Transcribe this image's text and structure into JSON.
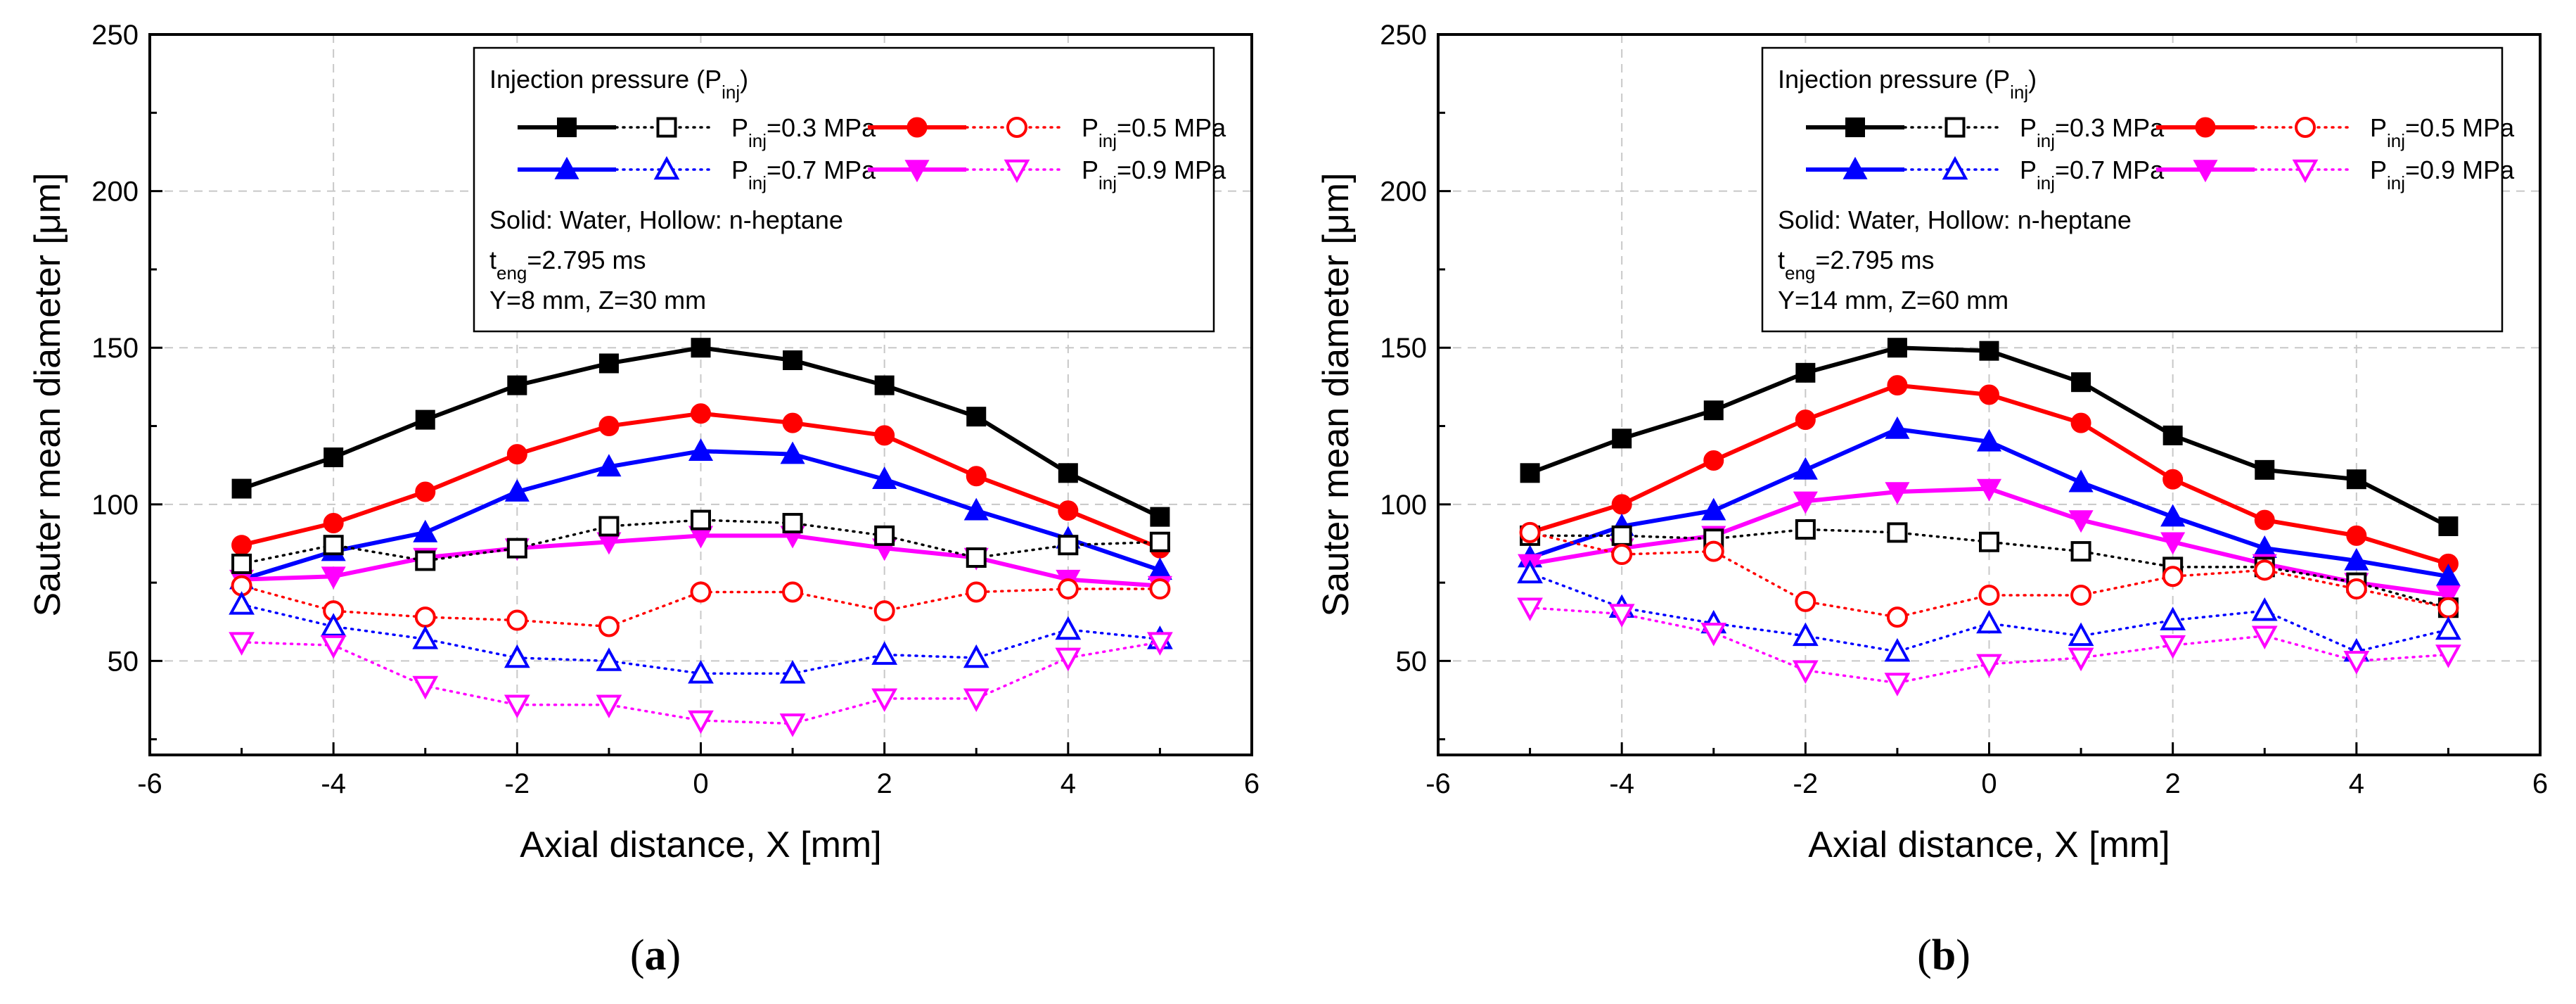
{
  "chart_data": [
    {
      "type": "line",
      "panel": "a",
      "panel_label_open": "(",
      "panel_label_letter": "a",
      "panel_label_close": ")",
      "xlabel": "Axial distance, X [mm]",
      "ylabel": "Sauter mean diameter [μm]",
      "xlim": [
        -6,
        6
      ],
      "ylim": [
        20,
        250
      ],
      "x_ticks": [
        "-6",
        "-4",
        "-2",
        "0",
        "2",
        "4",
        "6"
      ],
      "y_ticks": [
        "50",
        "100",
        "150",
        "200",
        "250"
      ],
      "grid": true,
      "legend": {
        "title": "Injection pressure (P",
        "title_sub": "inj",
        "title_close": ")",
        "entries": [
          {
            "pre": "P",
            "sub": "inj",
            "post": "=0.3 MPa"
          },
          {
            "pre": "P",
            "sub": "inj",
            "post": "=0.5 MPa"
          },
          {
            "pre": "P",
            "sub": "inj",
            "post": "=0.7 MPa"
          },
          {
            "pre": "P",
            "sub": "inj",
            "post": "=0.9 MPa"
          }
        ],
        "note1": "Solid: Water, Hollow: n-heptane",
        "note2_pre": "t",
        "note2_sub": "eng",
        "note2_post": "=2.795 ms",
        "note3": "Y=8 mm, Z=30 mm",
        "placement": "top-right"
      },
      "x": [
        -5,
        -4,
        -3,
        -2,
        -1,
        0,
        1,
        2,
        3,
        4,
        5
      ],
      "series": [
        {
          "name": "Water P_inj=0.3 MPa",
          "fluid": "water",
          "color": "#000000",
          "marker": "square",
          "values": [
            105,
            115,
            127,
            138,
            145,
            150,
            146,
            138,
            128,
            110,
            96
          ]
        },
        {
          "name": "Water P_inj=0.5 MPa",
          "fluid": "water",
          "color": "#ff0000",
          "marker": "circle",
          "values": [
            87,
            94,
            104,
            116,
            125,
            129,
            126,
            122,
            109,
            98,
            86
          ]
        },
        {
          "name": "Water P_inj=0.7 MPa",
          "fluid": "water",
          "color": "#0000ff",
          "marker": "triangle-up",
          "values": [
            76,
            85,
            91,
            104,
            112,
            117,
            116,
            108,
            98,
            89,
            79
          ]
        },
        {
          "name": "Water P_inj=0.9 MPa",
          "fluid": "water",
          "color": "#ff00ff",
          "marker": "triangle-down",
          "values": [
            76,
            77,
            83,
            86,
            88,
            90,
            90,
            86,
            83,
            76,
            74
          ]
        },
        {
          "name": "n-heptane P_inj=0.3 MPa",
          "fluid": "n-heptane",
          "color": "#000000",
          "marker": "square",
          "values": [
            81,
            87,
            82,
            86,
            93,
            95,
            94,
            90,
            83,
            87,
            88
          ]
        },
        {
          "name": "n-heptane P_inj=0.5 MPa",
          "fluid": "n-heptane",
          "color": "#ff0000",
          "marker": "circle",
          "values": [
            74,
            66,
            64,
            63,
            61,
            72,
            72,
            66,
            72,
            73,
            73
          ]
        },
        {
          "name": "n-heptane P_inj=0.7 MPa",
          "fluid": "n-heptane",
          "color": "#0000ff",
          "marker": "triangle-up",
          "values": [
            68,
            61,
            57,
            51,
            50,
            46,
            46,
            52,
            51,
            60,
            57
          ]
        },
        {
          "name": "n-heptane P_inj=0.9 MPa",
          "fluid": "n-heptane",
          "color": "#ff00ff",
          "marker": "triangle-down",
          "values": [
            56,
            55,
            42,
            36,
            36,
            31,
            30,
            38,
            38,
            51,
            56
          ]
        }
      ]
    },
    {
      "type": "line",
      "panel": "b",
      "panel_label_open": "(",
      "panel_label_letter": "b",
      "panel_label_close": ")",
      "xlabel": "Axial distance, X [mm]",
      "ylabel": "Sauter mean diameter [μm]",
      "xlim": [
        -6,
        6
      ],
      "ylim": [
        20,
        250
      ],
      "x_ticks": [
        "-6",
        "-4",
        "-2",
        "0",
        "2",
        "4",
        "6"
      ],
      "y_ticks": [
        "50",
        "100",
        "150",
        "200",
        "250"
      ],
      "grid": true,
      "legend": {
        "title": "Injection pressure (P",
        "title_sub": "inj",
        "title_close": ")",
        "entries": [
          {
            "pre": "P",
            "sub": "inj",
            "post": "=0.3 MPa"
          },
          {
            "pre": "P",
            "sub": "inj",
            "post": "=0.5 MPa"
          },
          {
            "pre": "P",
            "sub": "inj",
            "post": "=0.7 MPa"
          },
          {
            "pre": "P",
            "sub": "inj",
            "post": "=0.9 MPa"
          }
        ],
        "note1": "Solid: Water, Hollow: n-heptane",
        "note2_pre": "t",
        "note2_sub": "eng",
        "note2_post": "=2.795 ms",
        "note3": "Y=14 mm, Z=60 mm",
        "placement": "top-right"
      },
      "x": [
        -5,
        -4,
        -3,
        -2,
        -1,
        0,
        1,
        2,
        3,
        4,
        5
      ],
      "series": [
        {
          "name": "Water P_inj=0.3 MPa",
          "fluid": "water",
          "color": "#000000",
          "marker": "square",
          "values": [
            110,
            121,
            130,
            142,
            150,
            149,
            139,
            122,
            111,
            108,
            93
          ]
        },
        {
          "name": "Water P_inj=0.5 MPa",
          "fluid": "water",
          "color": "#ff0000",
          "marker": "circle",
          "values": [
            91,
            100,
            114,
            127,
            138,
            135,
            126,
            108,
            95,
            90,
            81
          ]
        },
        {
          "name": "Water P_inj=0.7 MPa",
          "fluid": "water",
          "color": "#0000ff",
          "marker": "triangle-up",
          "values": [
            83,
            93,
            98,
            111,
            124,
            120,
            107,
            96,
            86,
            82,
            77
          ]
        },
        {
          "name": "Water P_inj=0.9 MPa",
          "fluid": "water",
          "color": "#ff00ff",
          "marker": "triangle-down",
          "values": [
            81,
            86,
            90,
            101,
            104,
            105,
            95,
            88,
            81,
            75,
            71
          ]
        },
        {
          "name": "n-heptane P_inj=0.3 MPa",
          "fluid": "n-heptane",
          "color": "#000000",
          "marker": "square",
          "values": [
            90,
            90,
            89,
            92,
            91,
            88,
            85,
            80,
            80,
            75,
            67
          ]
        },
        {
          "name": "n-heptane P_inj=0.5 MPa",
          "fluid": "n-heptane",
          "color": "#ff0000",
          "marker": "circle",
          "values": [
            91,
            84,
            85,
            69,
            64,
            71,
            71,
            77,
            79,
            73,
            67
          ]
        },
        {
          "name": "n-heptane P_inj=0.7 MPa",
          "fluid": "n-heptane",
          "color": "#0000ff",
          "marker": "triangle-up",
          "values": [
            78,
            67,
            62,
            58,
            53,
            62,
            58,
            63,
            66,
            53,
            60
          ]
        },
        {
          "name": "n-heptane P_inj=0.9 MPa",
          "fluid": "n-heptane",
          "color": "#ff00ff",
          "marker": "triangle-down",
          "values": [
            67,
            65,
            59,
            47,
            43,
            49,
            51,
            55,
            58,
            50,
            52
          ]
        }
      ]
    }
  ]
}
